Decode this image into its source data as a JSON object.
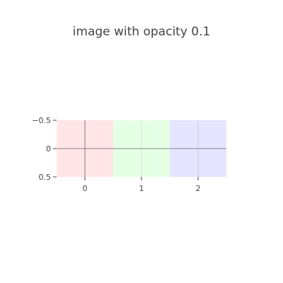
{
  "chart_data": {
    "type": "heatmap",
    "title": "image with opacity 0.1",
    "xlabel": "",
    "ylabel": "",
    "x_ticks": [
      "0",
      "1",
      "2"
    ],
    "y_ticks": [
      "−0.5",
      "0",
      "0.5"
    ],
    "xlim": [
      -0.5,
      2.5
    ],
    "ylim": [
      0.5,
      -0.5
    ],
    "y_reversed": true,
    "grid": true,
    "zero_lines": true,
    "opacity": 0.1,
    "pixels": [
      {
        "x": 0,
        "y": 0,
        "color": "#ff0000"
      },
      {
        "x": 1,
        "y": 0,
        "color": "#00ff00"
      },
      {
        "x": 2,
        "y": 0,
        "color": "#0000ff"
      }
    ]
  }
}
